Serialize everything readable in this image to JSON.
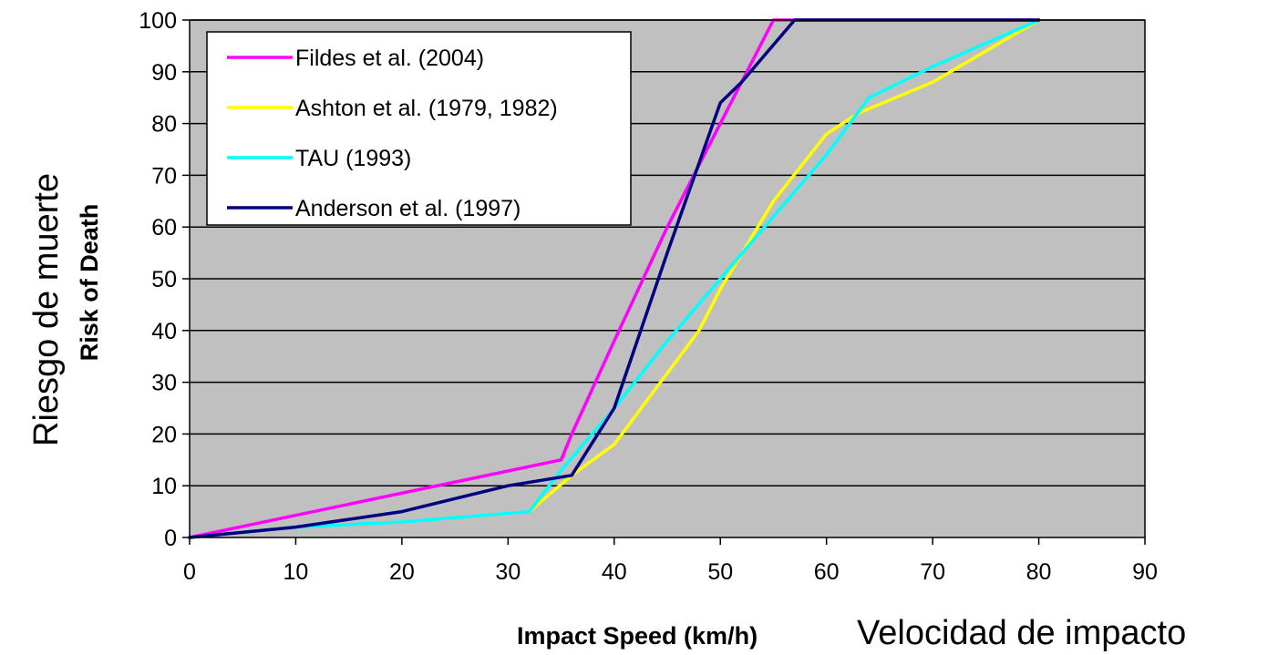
{
  "chart_data": {
    "type": "line",
    "xlabel": "Impact Speed (km/h)",
    "ylabel": "Risk of Death",
    "xlim": [
      0,
      90
    ],
    "ylim": [
      0,
      100
    ],
    "x_ticks": [
      0,
      10,
      20,
      30,
      40,
      50,
      60,
      70,
      80,
      90
    ],
    "y_ticks": [
      0,
      10,
      20,
      30,
      40,
      50,
      60,
      70,
      80,
      90,
      100
    ],
    "grid": "horizontal",
    "background": "#c0c0c0",
    "legend_position": "top-left",
    "series": [
      {
        "name": "Fildes et al. (2004)",
        "color": "#ff00ff",
        "points": [
          [
            0,
            0
          ],
          [
            35,
            15
          ],
          [
            36,
            20
          ],
          [
            40,
            38
          ],
          [
            45,
            60
          ],
          [
            50,
            80
          ],
          [
            55,
            100
          ],
          [
            80,
            100
          ]
        ]
      },
      {
        "name": "Ashton et al. (1979, 1982)",
        "color": "#ffff00",
        "points": [
          [
            32,
            5
          ],
          [
            36,
            12
          ],
          [
            40,
            18
          ],
          [
            48,
            40
          ],
          [
            50,
            48
          ],
          [
            55,
            65
          ],
          [
            60,
            78
          ],
          [
            63,
            82
          ],
          [
            70,
            88
          ],
          [
            80,
            100
          ]
        ]
      },
      {
        "name": "TAU (1993)",
        "color": "#00ffff",
        "points": [
          [
            0,
            0
          ],
          [
            10,
            2
          ],
          [
            20,
            3
          ],
          [
            32,
            5
          ],
          [
            35,
            13
          ],
          [
            40,
            25
          ],
          [
            45,
            38
          ],
          [
            50,
            50
          ],
          [
            55,
            62
          ],
          [
            60,
            74
          ],
          [
            64,
            85
          ],
          [
            70,
            91
          ],
          [
            80,
            100
          ]
        ]
      },
      {
        "name": "Anderson et al. (1997)",
        "color": "#000080",
        "points": [
          [
            0,
            0
          ],
          [
            10,
            2
          ],
          [
            20,
            5
          ],
          [
            30,
            10
          ],
          [
            36,
            12
          ],
          [
            40,
            25
          ],
          [
            45,
            55
          ],
          [
            50,
            84
          ],
          [
            52,
            88
          ],
          [
            57,
            100
          ],
          [
            80,
            100
          ]
        ]
      }
    ]
  },
  "annotations": {
    "x_translation": "Velocidad de impacto",
    "y_translation": "Riesgo de muerte"
  }
}
